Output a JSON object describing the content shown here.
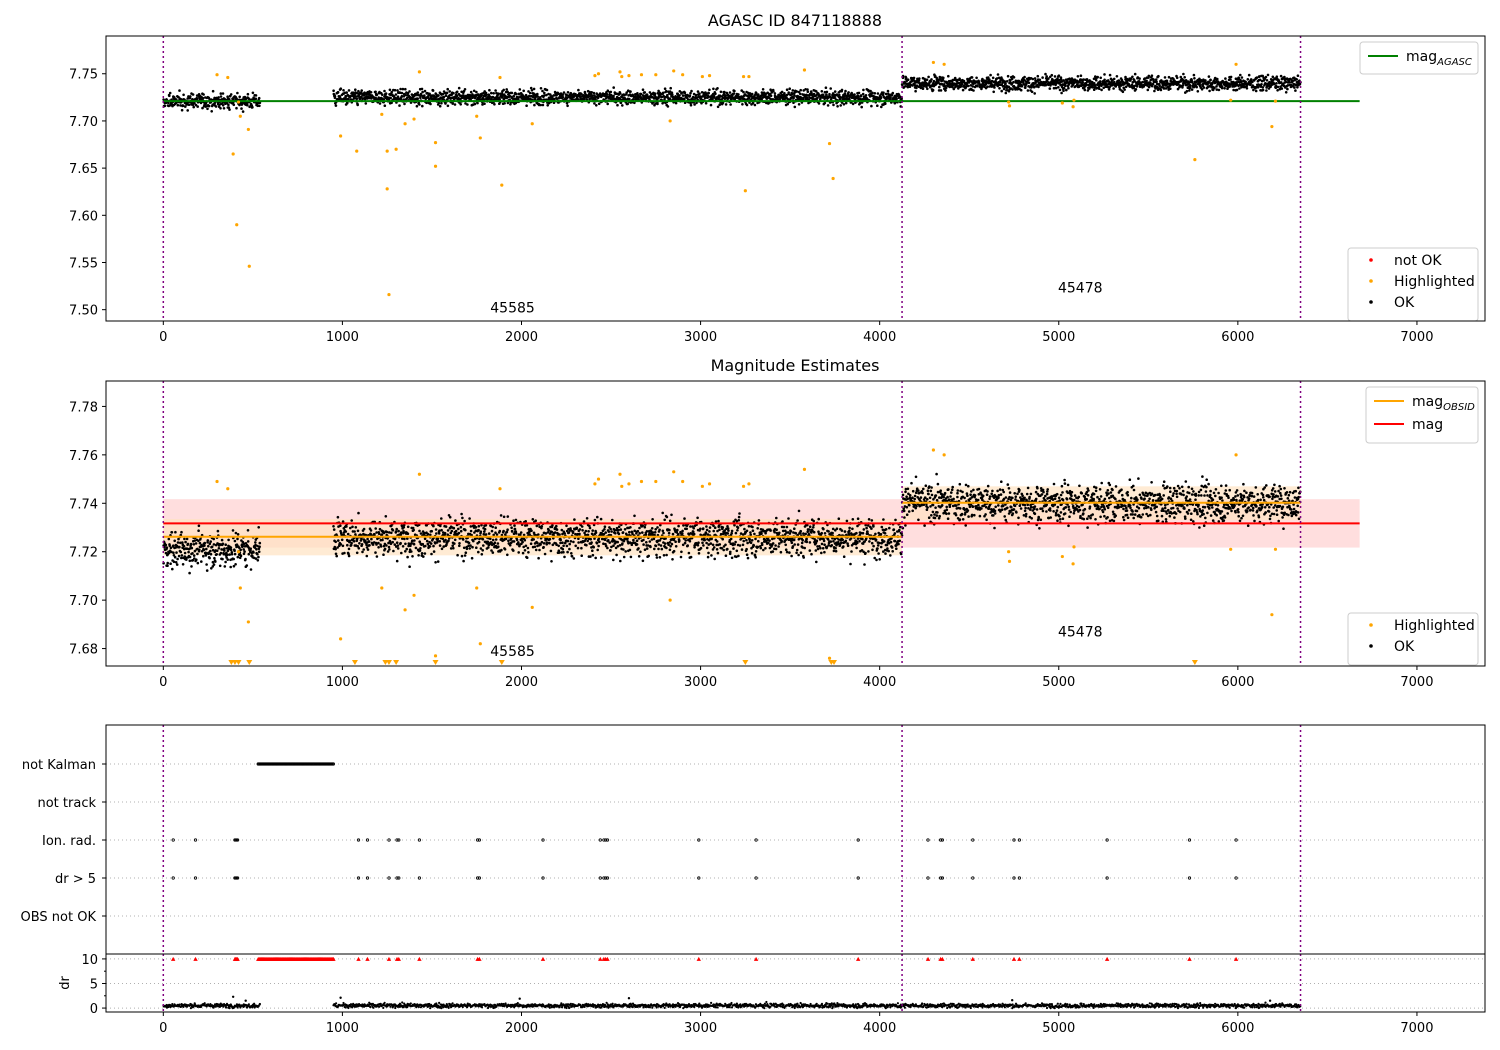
{
  "figure": {
    "background": "#ffffff"
  },
  "chart_data": [
    {
      "type": "scatter",
      "title": "AGASC ID 847118888",
      "xlim": [
        -320,
        7380
      ],
      "ylim": [
        7.488,
        7.79
      ],
      "xticks": [
        0,
        1000,
        2000,
        3000,
        4000,
        5000,
        6000,
        7000
      ],
      "yticks": [
        7.5,
        7.55,
        7.6,
        7.65,
        7.7,
        7.75
      ],
      "vlines": [
        0,
        4125,
        6350
      ],
      "vline_color": "#800080",
      "annotations": [
        {
          "text": "45585",
          "x": 1950,
          "y": 7.497
        },
        {
          "text": "45478",
          "x": 5120,
          "y": 7.518
        }
      ],
      "lines": [
        {
          "name": "mag_AGASC",
          "label_main": "mag",
          "label_sub": "AGASC",
          "y": 7.721,
          "x": [
            0,
            6680
          ],
          "color": "#008000"
        }
      ],
      "highlighted_points": [
        {
          "x": 300,
          "y": 7.749
        },
        {
          "x": 360,
          "y": 7.746
        },
        {
          "x": 390,
          "y": 7.665
        },
        {
          "x": 410,
          "y": 7.59
        },
        {
          "x": 420,
          "y": 7.72
        },
        {
          "x": 430,
          "y": 7.705
        },
        {
          "x": 475,
          "y": 7.691
        },
        {
          "x": 480,
          "y": 7.546
        },
        {
          "x": 990,
          "y": 7.684
        },
        {
          "x": 1080,
          "y": 7.668
        },
        {
          "x": 1220,
          "y": 7.707
        },
        {
          "x": 1250,
          "y": 7.668
        },
        {
          "x": 1250,
          "y": 7.628
        },
        {
          "x": 1260,
          "y": 7.516
        },
        {
          "x": 1300,
          "y": 7.67
        },
        {
          "x": 1350,
          "y": 7.697
        },
        {
          "x": 1400,
          "y": 7.702
        },
        {
          "x": 1430,
          "y": 7.752
        },
        {
          "x": 1520,
          "y": 7.677
        },
        {
          "x": 1520,
          "y": 7.652
        },
        {
          "x": 1750,
          "y": 7.705
        },
        {
          "x": 1770,
          "y": 7.682
        },
        {
          "x": 1880,
          "y": 7.746
        },
        {
          "x": 1890,
          "y": 7.632
        },
        {
          "x": 2060,
          "y": 7.697
        },
        {
          "x": 2410,
          "y": 7.748
        },
        {
          "x": 2430,
          "y": 7.75
        },
        {
          "x": 2550,
          "y": 7.752
        },
        {
          "x": 2560,
          "y": 7.747
        },
        {
          "x": 2600,
          "y": 7.748
        },
        {
          "x": 2670,
          "y": 7.749
        },
        {
          "x": 2750,
          "y": 7.749
        },
        {
          "x": 2830,
          "y": 7.7
        },
        {
          "x": 2850,
          "y": 7.753
        },
        {
          "x": 2900,
          "y": 7.749
        },
        {
          "x": 3010,
          "y": 7.747
        },
        {
          "x": 3050,
          "y": 7.748
        },
        {
          "x": 3240,
          "y": 7.747
        },
        {
          "x": 3250,
          "y": 7.626
        },
        {
          "x": 3270,
          "y": 7.747
        },
        {
          "x": 3580,
          "y": 7.754
        },
        {
          "x": 3720,
          "y": 7.676
        },
        {
          "x": 3740,
          "y": 7.639
        },
        {
          "x": 4300,
          "y": 7.762
        },
        {
          "x": 4360,
          "y": 7.76
        },
        {
          "x": 4720,
          "y": 7.72
        },
        {
          "x": 4725,
          "y": 7.716
        },
        {
          "x": 5020,
          "y": 7.719
        },
        {
          "x": 5080,
          "y": 7.715
        },
        {
          "x": 5085,
          "y": 7.722
        },
        {
          "x": 5760,
          "y": 7.659
        },
        {
          "x": 5960,
          "y": 7.722
        },
        {
          "x": 5990,
          "y": 7.76
        },
        {
          "x": 6190,
          "y": 7.694
        },
        {
          "x": 6210,
          "y": 7.721
        }
      ],
      "ok_segments": [
        {
          "x": [
            0,
            540
          ],
          "mean": 7.721,
          "spread": 0.006
        },
        {
          "x": [
            950,
            4125
          ],
          "mean": 7.725,
          "spread": 0.006
        },
        {
          "x": [
            4125,
            6350
          ],
          "mean": 7.74,
          "spread": 0.006
        }
      ],
      "legends": [
        {
          "position": "top-right",
          "entries": [
            {
              "label": "mag",
              "sub": "AGASC",
              "kind": "line",
              "color": "#008000"
            }
          ]
        },
        {
          "position": "bottom-right",
          "entries": [
            {
              "label": "not OK",
              "kind": "dot",
              "color": "#ff0000"
            },
            {
              "label": "Highlighted",
              "kind": "dot",
              "color": "#ffa500"
            },
            {
              "label": "OK",
              "kind": "dot",
              "color": "#000000"
            }
          ]
        }
      ]
    },
    {
      "type": "scatter",
      "title": "Magnitude Estimates",
      "xlim": [
        -320,
        7380
      ],
      "ylim": [
        7.6728,
        7.7905
      ],
      "xticks": [
        0,
        1000,
        2000,
        3000,
        4000,
        5000,
        6000,
        7000
      ],
      "yticks": [
        7.68,
        7.7,
        7.72,
        7.74,
        7.76,
        7.78
      ],
      "vlines": [
        0,
        4125,
        6350
      ],
      "vline_color": "#800080",
      "annotations": [
        {
          "text": "45585",
          "x": 1950,
          "y": 7.677
        },
        {
          "text": "45478",
          "x": 5120,
          "y": 7.685
        }
      ],
      "mag_band": {
        "y": 7.7317,
        "low": 7.7217,
        "high": 7.7417,
        "x": [
          0,
          6680
        ],
        "line_color": "#ff0000",
        "band_color": "#ffd8d8"
      },
      "obsid_segments": [
        {
          "x": [
            0,
            4125
          ],
          "y": 7.7262,
          "low": 7.7185,
          "high": 7.7335,
          "color": "#ffa500",
          "band_color": "#ffe3c2"
        },
        {
          "x": [
            4125,
            6350
          ],
          "y": 7.7402,
          "low": 7.733,
          "high": 7.747,
          "color": "#ffa500",
          "band_color": "#ffe3c2"
        }
      ],
      "highlighted_points": [
        {
          "x": 300,
          "y": 7.749
        },
        {
          "x": 360,
          "y": 7.746
        },
        {
          "x": 420,
          "y": 7.72
        },
        {
          "x": 430,
          "y": 7.705
        },
        {
          "x": 475,
          "y": 7.691
        },
        {
          "x": 990,
          "y": 7.684
        },
        {
          "x": 1220,
          "y": 7.705
        },
        {
          "x": 1350,
          "y": 7.696
        },
        {
          "x": 1400,
          "y": 7.702
        },
        {
          "x": 1430,
          "y": 7.752
        },
        {
          "x": 1520,
          "y": 7.677
        },
        {
          "x": 1750,
          "y": 7.705
        },
        {
          "x": 1770,
          "y": 7.682
        },
        {
          "x": 1880,
          "y": 7.746
        },
        {
          "x": 2060,
          "y": 7.697
        },
        {
          "x": 2410,
          "y": 7.748
        },
        {
          "x": 2430,
          "y": 7.75
        },
        {
          "x": 2550,
          "y": 7.752
        },
        {
          "x": 2560,
          "y": 7.747
        },
        {
          "x": 2600,
          "y": 7.748
        },
        {
          "x": 2670,
          "y": 7.749
        },
        {
          "x": 2750,
          "y": 7.749
        },
        {
          "x": 2830,
          "y": 7.7
        },
        {
          "x": 2850,
          "y": 7.753
        },
        {
          "x": 2900,
          "y": 7.749
        },
        {
          "x": 3010,
          "y": 7.747
        },
        {
          "x": 3050,
          "y": 7.748
        },
        {
          "x": 3240,
          "y": 7.747
        },
        {
          "x": 3270,
          "y": 7.748
        },
        {
          "x": 3580,
          "y": 7.754
        },
        {
          "x": 3720,
          "y": 7.676
        },
        {
          "x": 4300,
          "y": 7.762
        },
        {
          "x": 4360,
          "y": 7.76
        },
        {
          "x": 4720,
          "y": 7.72
        },
        {
          "x": 4725,
          "y": 7.716
        },
        {
          "x": 5020,
          "y": 7.718
        },
        {
          "x": 5080,
          "y": 7.715
        },
        {
          "x": 5085,
          "y": 7.722
        },
        {
          "x": 5960,
          "y": 7.721
        },
        {
          "x": 5990,
          "y": 7.76
        },
        {
          "x": 6190,
          "y": 7.694
        },
        {
          "x": 6210,
          "y": 7.721
        }
      ],
      "clipped_points_x": [
        380,
        400,
        420,
        480,
        1070,
        1240,
        1260,
        1300,
        1520,
        1890,
        3250,
        3730,
        3745,
        5760
      ],
      "ok_segments": [
        {
          "x": [
            0,
            540
          ],
          "mean": 7.721,
          "spread": 0.006
        },
        {
          "x": [
            950,
            4125
          ],
          "mean": 7.726,
          "spread": 0.006
        },
        {
          "x": [
            4125,
            6350
          ],
          "mean": 7.74,
          "spread": 0.006
        }
      ],
      "legends": [
        {
          "position": "top-right",
          "entries": [
            {
              "label": "mag",
              "sub": "OBSID",
              "kind": "line",
              "color": "#ffa500"
            },
            {
              "label": "mag",
              "kind": "line",
              "color": "#ff0000"
            }
          ]
        },
        {
          "position": "bottom-right",
          "entries": [
            {
              "label": "Highlighted",
              "kind": "dot",
              "color": "#ffa500"
            },
            {
              "label": "OK",
              "kind": "dot",
              "color": "#000000"
            }
          ]
        }
      ]
    },
    {
      "type": "scatter",
      "title": "",
      "xlim": [
        -320,
        7380
      ],
      "vlines": [
        0,
        4125,
        6350
      ],
      "vline_color": "#800080",
      "categories": [
        "not Kalman",
        "not track",
        "Ion. rad.",
        "dr > 5",
        "OBS not OK"
      ],
      "flags": {
        "not Kalman": {
          "ranges": [
            [
              530,
              950
            ]
          ],
          "points": []
        },
        "not track": {
          "ranges": [],
          "points": []
        },
        "Ion. rad.": {
          "ranges": [],
          "points": [
            55,
            180,
            400,
            405,
            410,
            415,
            1090,
            1140,
            1260,
            1305,
            1315,
            1430,
            1755,
            1765,
            2120,
            2440,
            2460,
            2470,
            2480,
            2990,
            3310,
            3880,
            4270,
            4340,
            4350,
            4520,
            4750,
            4780,
            5270,
            5730,
            5990
          ]
        },
        "dr > 5": {
          "ranges": [],
          "points": [
            55,
            180,
            400,
            405,
            410,
            415,
            1090,
            1140,
            1260,
            1305,
            1315,
            1430,
            1755,
            1765,
            2120,
            2440,
            2460,
            2470,
            2480,
            2990,
            3310,
            3880,
            4270,
            4340,
            4350,
            4520,
            4750,
            4780,
            5270,
            5730,
            5990
          ]
        },
        "OBS not OK": {
          "ranges": [],
          "points": []
        }
      }
    },
    {
      "type": "scatter",
      "title": "",
      "ylabel": "dr",
      "xlim": [
        -320,
        7380
      ],
      "ylim": [
        -0.8,
        11
      ],
      "xticks": [
        0,
        1000,
        2000,
        3000,
        4000,
        5000,
        6000,
        7000
      ],
      "yticks": [
        0,
        5,
        10
      ],
      "vlines": [
        0,
        4125,
        6350
      ],
      "vline_color": "#800080",
      "clipped_marker_y": 10,
      "clipped_color": "#ff0000",
      "clipped_ranges": [
        [
          530,
          950
        ]
      ],
      "clipped_points": [
        55,
        180,
        400,
        405,
        410,
        415,
        1090,
        1140,
        1260,
        1305,
        1315,
        1430,
        1755,
        1765,
        2120,
        2440,
        2460,
        2470,
        2480,
        2990,
        3310,
        3880,
        4270,
        4340,
        4350,
        4520,
        4750,
        4780,
        5270,
        5730,
        5990
      ],
      "dr_segments": [
        {
          "x": [
            0,
            540
          ],
          "mean": 0.5,
          "spread": 0.3
        },
        {
          "x": [
            950,
            6350
          ],
          "mean": 0.5,
          "spread": 0.3
        }
      ],
      "dr_outliers": [
        {
          "x": 390,
          "y": 2.3
        },
        {
          "x": 460,
          "y": 1.5
        },
        {
          "x": 990,
          "y": 2.1
        },
        {
          "x": 1990,
          "y": 1.9
        },
        {
          "x": 2600,
          "y": 2.0
        },
        {
          "x": 4740,
          "y": 1.6
        },
        {
          "x": 6180,
          "y": 1.5
        }
      ]
    }
  ]
}
